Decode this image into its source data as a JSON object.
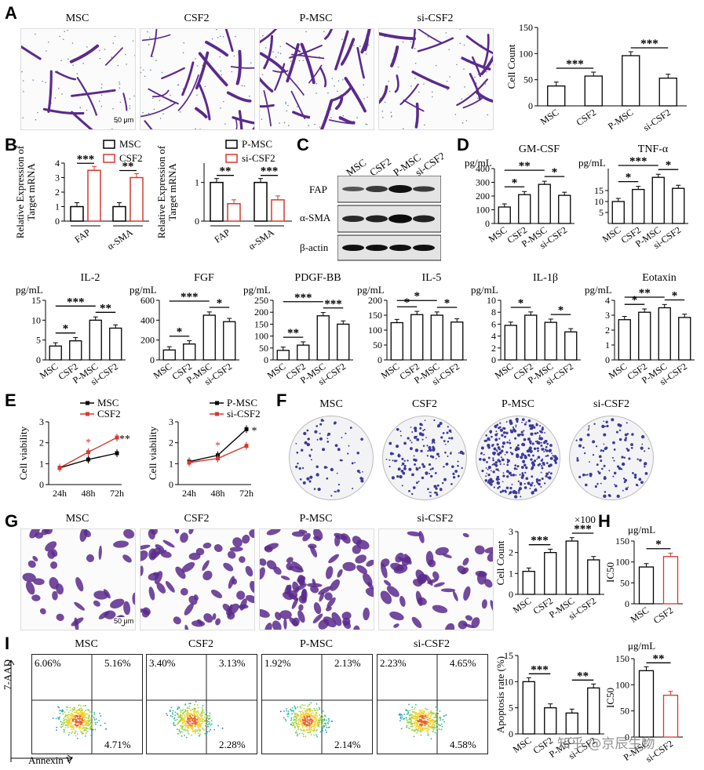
{
  "colors": {
    "black": "#000000",
    "red": "#d33a2f",
    "stain": "#5b2a8c",
    "colony": "#3b3a9a"
  },
  "panel_labels": {
    "A": "A",
    "B": "B",
    "C": "C",
    "D": "D",
    "E": "E",
    "F": "F",
    "G": "G",
    "H": "H",
    "I": "I"
  },
  "panelA": {
    "images": [
      "MSC",
      "CSF2",
      "P-MSC",
      "si-CSF2"
    ],
    "scalebar": "50 μm"
  },
  "panelG": {
    "images": [
      "MSC",
      "CSF2",
      "P-MSC",
      "si-CSF2"
    ],
    "scalebar": "50 μm"
  },
  "panelF": {
    "images": [
      "MSC",
      "CSF2",
      "P-MSC",
      "si-CSF2"
    ]
  },
  "panelC": {
    "lanes": [
      "MSC",
      "CSF2",
      "P-MSC",
      "si-CSF2"
    ],
    "rows": [
      "FAP",
      "α-SMA",
      "β-actin"
    ]
  },
  "panelI": {
    "axis_y": "7-AAD",
    "axis_x": "Annexin V",
    "plots": [
      {
        "name": "MSC",
        "ul": "6.06%",
        "ur": "5.16%",
        "lr": "4.71%"
      },
      {
        "name": "CSF2",
        "ul": "3.40%",
        "ur": "3.13%",
        "lr": "2.28%"
      },
      {
        "name": "P-MSC",
        "ul": "1.92%",
        "ur": "2.13%",
        "lr": "2.14%"
      },
      {
        "name": "si-CSF2",
        "ul": "2.23%",
        "ur": "4.65%",
        "lr": "4.58%"
      }
    ]
  },
  "watermark": "知乎 @京辰生物",
  "chart_data": [
    {
      "id": "A",
      "type": "bar",
      "ylabel": "Cell Count",
      "categories": [
        "MSC",
        "CSF2",
        "P-MSC",
        "si-CSF2"
      ],
      "values": [
        38,
        57,
        96,
        53
      ],
      "ylim": [
        0,
        150
      ],
      "yticks": [
        "0",
        "50",
        "100",
        "150"
      ],
      "sig": [
        {
          "from": 0,
          "to": 1,
          "label": "***"
        },
        {
          "from": 2,
          "to": 3,
          "label": "***"
        }
      ]
    },
    {
      "id": "B1",
      "type": "bar",
      "ylabel": "Relative Expression of Target mRNA",
      "groups": [
        "FAP",
        "α-SMA"
      ],
      "series": [
        {
          "name": "MSC",
          "values": [
            1,
            1
          ]
        },
        {
          "name": "CSF2",
          "values": [
            3.5,
            3.0
          ]
        }
      ],
      "ylim": [
        0,
        4
      ],
      "yticks": [
        "0",
        "1",
        "2",
        "3",
        "4"
      ],
      "sig": [
        "***",
        "**"
      ]
    },
    {
      "id": "B2",
      "type": "bar",
      "ylabel": "Relative Expression of Target mRNA",
      "groups": [
        "FAP",
        "α-SMA"
      ],
      "series": [
        {
          "name": "P-MSC",
          "values": [
            1,
            1
          ]
        },
        {
          "name": "si-CSF2",
          "values": [
            0.45,
            0.55
          ]
        }
      ],
      "ylim": [
        0,
        1.5
      ],
      "yticks": [
        "0",
        "1"
      ],
      "sig": [
        "**",
        "***"
      ]
    },
    {
      "id": "GM-CSF",
      "type": "bar",
      "title": "GM-CSF",
      "unit": "pg/mL",
      "categories": [
        "MSC",
        "CSF2",
        "P-MSC",
        "si-CSF2"
      ],
      "values": [
        120,
        210,
        285,
        205
      ],
      "ylim": [
        0,
        400
      ],
      "yticks": [
        "0",
        "100",
        "200",
        "300",
        "400"
      ],
      "sig": [
        {
          "from": 0,
          "to": 1,
          "label": "*"
        },
        {
          "from": 0,
          "to": 2,
          "label": "**"
        },
        {
          "from": 2,
          "to": 3,
          "label": "*"
        }
      ]
    },
    {
      "id": "TNF-α",
      "type": "bar",
      "title": "TNF-α",
      "unit": "pg/mL",
      "categories": [
        "MSC",
        "CSF2",
        "P-MSC",
        "si-CSF2"
      ],
      "values": [
        10,
        15.5,
        21,
        16
      ],
      "ylim": [
        0,
        25
      ],
      "yticks": [
        "5",
        "10",
        "15"
      ],
      "sig": [
        {
          "from": 0,
          "to": 1,
          "label": "*"
        },
        {
          "from": 0,
          "to": 2,
          "label": "***"
        },
        {
          "from": 2,
          "to": 3,
          "label": "*"
        }
      ]
    },
    {
      "id": "IL-2",
      "type": "bar",
      "title": "IL-2",
      "unit": "pg/mL",
      "categories": [
        "MSC",
        "CSF2",
        "P-MSC",
        "si-CSF2"
      ],
      "values": [
        3.5,
        4.8,
        10,
        8
      ],
      "ylim": [
        0,
        15
      ],
      "yticks": [
        "0",
        "5",
        "10",
        "15"
      ],
      "sig": [
        {
          "from": 0,
          "to": 1,
          "label": "*"
        },
        {
          "from": 0,
          "to": 2,
          "label": "***"
        },
        {
          "from": 2,
          "to": 3,
          "label": "**"
        }
      ]
    },
    {
      "id": "FGF",
      "type": "bar",
      "title": "FGF",
      "unit": "pg/mL",
      "categories": [
        "MSC",
        "CSF2",
        "P-MSC",
        "si-CSF2"
      ],
      "values": [
        100,
        160,
        450,
        385
      ],
      "ylim": [
        0,
        600
      ],
      "yticks": [
        "0",
        "200",
        "400",
        "600"
      ],
      "sig": [
        {
          "from": 0,
          "to": 1,
          "label": "*"
        },
        {
          "from": 0,
          "to": 2,
          "label": "***"
        },
        {
          "from": 2,
          "to": 3,
          "label": "*"
        }
      ]
    },
    {
      "id": "PDGF-BB",
      "type": "bar",
      "title": "PDGF-BB",
      "unit": "pg/mL",
      "categories": [
        "MSC",
        "CSF2",
        "P-MSC",
        "si-CSF2"
      ],
      "values": [
        40,
        62,
        185,
        150
      ],
      "ylim": [
        0,
        250
      ],
      "yticks": [
        "0",
        "50",
        "100",
        "150",
        "200",
        "250"
      ],
      "sig": [
        {
          "from": 0,
          "to": 1,
          "label": "**"
        },
        {
          "from": 0,
          "to": 2,
          "label": "***"
        },
        {
          "from": 2,
          "to": 3,
          "label": "***"
        }
      ]
    },
    {
      "id": "IL-5",
      "type": "bar",
      "title": "IL-5",
      "unit": "pg/mL",
      "categories": [
        "MSC",
        "CSF2",
        "P-MSC",
        "si-CSF2"
      ],
      "values": [
        125,
        152,
        150,
        127
      ],
      "ylim": [
        0,
        200
      ],
      "yticks": [
        "0",
        "50",
        "100",
        "150",
        "200"
      ],
      "sig": [
        {
          "from": 0,
          "to": 1,
          "label": "*"
        },
        {
          "from": 0,
          "to": 2,
          "label": "*"
        },
        {
          "from": 2,
          "to": 3,
          "label": "*"
        }
      ]
    },
    {
      "id": "IL-1β",
      "type": "bar",
      "title": "IL-1β",
      "unit": "pg/mL",
      "categories": [
        "MSC",
        "CSF2",
        "P-MSC",
        "si-CSF2"
      ],
      "values": [
        5.8,
        7.5,
        6.3,
        4.7
      ],
      "ylim": [
        0,
        10
      ],
      "yticks": [
        "0",
        "2",
        "4",
        "6",
        "8",
        "10"
      ],
      "sig": [
        {
          "from": 0,
          "to": 1,
          "label": "*"
        },
        {
          "from": 2,
          "to": 3,
          "label": "*"
        }
      ]
    },
    {
      "id": "Eotaxin",
      "type": "bar",
      "title": "Eotaxin",
      "unit": "pg/mL",
      "categories": [
        "MSC",
        "CSF2",
        "P-MSC",
        "si-CSF2"
      ],
      "values": [
        2.7,
        3.2,
        3.5,
        2.85
      ],
      "ylim": [
        0,
        4
      ],
      "yticks": [
        "0",
        "1",
        "2",
        "3",
        "4"
      ],
      "sig": [
        {
          "from": 0,
          "to": 1,
          "label": "*"
        },
        {
          "from": 0,
          "to": 2,
          "label": "**"
        },
        {
          "from": 2,
          "to": 3,
          "label": "*"
        }
      ]
    },
    {
      "id": "E1",
      "type": "line",
      "ylabel": "Cell viability",
      "x": [
        "24h",
        "48h",
        "72h"
      ],
      "series": [
        {
          "name": "MSC",
          "values": [
            0.8,
            1.2,
            1.5
          ]
        },
        {
          "name": "CSF2",
          "values": [
            0.8,
            1.55,
            2.25
          ]
        }
      ],
      "ylim": [
        0,
        3
      ],
      "yticks": [
        "0",
        "1",
        "2",
        "3"
      ],
      "sig": [
        {
          "at": 1,
          "label": "*"
        },
        {
          "at": 2,
          "label": "**"
        }
      ]
    },
    {
      "id": "E2",
      "type": "line",
      "ylabel": "Cell viability",
      "x": [
        "24h",
        "48h",
        "72h"
      ],
      "series": [
        {
          "name": "P-MSC",
          "values": [
            1.1,
            1.4,
            2.65
          ]
        },
        {
          "name": "si-CSF2",
          "values": [
            1.05,
            1.25,
            1.85
          ]
        }
      ],
      "ylim": [
        0,
        3
      ],
      "yticks": [
        "0",
        "1",
        "2",
        "3"
      ],
      "sig": [
        {
          "at": 1,
          "label": "*"
        },
        {
          "at": 2,
          "label": "*"
        }
      ]
    },
    {
      "id": "G",
      "type": "bar",
      "ylabel": "Cell Count",
      "multiplier": "×100",
      "categories": [
        "MSC",
        "CSF2",
        "P-MSC",
        "si-CSF2"
      ],
      "values": [
        1.1,
        2.0,
        2.55,
        1.65
      ],
      "ylim": [
        0,
        3
      ],
      "yticks": [
        "0",
        "1",
        "2",
        "3"
      ],
      "sig": [
        {
          "from": 0,
          "to": 1,
          "label": "***"
        },
        {
          "from": 2,
          "to": 3,
          "label": "***"
        }
      ]
    },
    {
      "id": "H1",
      "type": "bar",
      "ylabel": "IC50",
      "unit": "μg/mL",
      "categories": [
        "MSC",
        "CSF2"
      ],
      "values": [
        88,
        113
      ],
      "ylim": [
        0,
        150
      ],
      "yticks": [
        "0",
        "50",
        "100",
        "150"
      ],
      "sig": [
        {
          "from": 0,
          "to": 1,
          "label": "*"
        }
      ],
      "colors": [
        "#000000",
        "#d33a2f"
      ]
    },
    {
      "id": "I",
      "type": "bar",
      "ylabel": "Apoptosis rate (%)",
      "categories": [
        "MSC",
        "CSF2",
        "P-MSC",
        "si-CSF2"
      ],
      "values": [
        10,
        5,
        4,
        8.8
      ],
      "ylim": [
        0,
        15
      ],
      "yticks": [
        "0",
        "5",
        "10",
        "15"
      ],
      "sig": [
        {
          "from": 0,
          "to": 1,
          "label": "***"
        },
        {
          "from": 2,
          "to": 3,
          "label": "**"
        }
      ]
    },
    {
      "id": "H2",
      "type": "bar",
      "ylabel": "IC50",
      "unit": "μg/mL",
      "categories": [
        "P-MSC",
        "si-CSF2"
      ],
      "values": [
        127,
        80
      ],
      "ylim": [
        0,
        150
      ],
      "yticks": [
        "0",
        "50",
        "100",
        "150"
      ],
      "sig": [
        {
          "from": 0,
          "to": 1,
          "label": "**"
        }
      ],
      "colors": [
        "#000000",
        "#d33a2f"
      ]
    }
  ]
}
